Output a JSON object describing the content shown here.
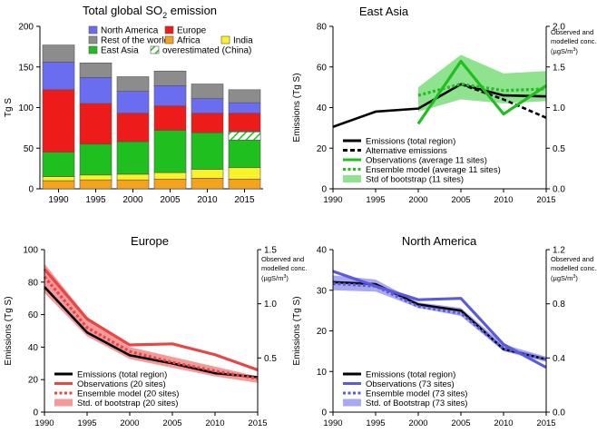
{
  "chart_data": [
    {
      "id": "global",
      "type": "bar",
      "stacked": true,
      "title": "Total global SO",
      "title_sub": "2",
      "title_suffix": " emission",
      "ylabel": "Tg S",
      "ylim": [
        0,
        200
      ],
      "yticks": [
        0,
        50,
        100,
        150,
        200
      ],
      "categories": [
        "1990",
        "1995",
        "2000",
        "2005",
        "2010",
        "2015"
      ],
      "series": [
        {
          "name": "Africa",
          "color": "#f5a31a",
          "values": [
            10,
            11,
            11,
            12,
            13,
            12
          ]
        },
        {
          "name": "India",
          "color": "#f8f32b",
          "values": [
            5,
            6,
            7,
            8,
            11,
            14
          ]
        },
        {
          "name": "East Asia",
          "color": "#1fbf1f",
          "values": [
            30,
            38,
            40,
            52,
            45,
            45
          ]
        },
        {
          "name": "Europe",
          "color": "#ee1b1b",
          "values": [
            77,
            50,
            35,
            30,
            24,
            22
          ]
        },
        {
          "name": "North America",
          "color": "#6a6df0",
          "values": [
            34,
            32,
            27,
            25,
            18,
            13
          ]
        },
        {
          "name": "Rest of the world",
          "color": "#8c8c8c",
          "values": [
            21,
            18,
            18,
            18,
            18,
            16
          ]
        }
      ],
      "hatched": {
        "name": "overestimated (China)",
        "color": "#1fbf1f",
        "category_index": 5,
        "base": 60,
        "value": 10
      },
      "legend": [
        "North America",
        "Europe",
        "Rest of the world",
        "Africa",
        "India",
        "East Asia",
        "overestimated (China)"
      ]
    },
    {
      "id": "eastasia",
      "type": "line",
      "title": "East Asia",
      "ylabel": "Emissions (Tg S)",
      "y2label": [
        "Observed and",
        "modelled conc.",
        "(µgS/m",
        "3",
        ")"
      ],
      "xlim": [
        1990,
        2015
      ],
      "xticks": [
        1990,
        1995,
        2000,
        2005,
        2010,
        2015
      ],
      "ylim": [
        0,
        80
      ],
      "yticks": [
        0,
        20,
        40,
        60,
        80
      ],
      "y2lim": [
        0,
        2.0
      ],
      "y2ticks": [
        0.0,
        0.5,
        1.0,
        1.5,
        2.0
      ],
      "lines": [
        {
          "name": "Emissions (total region)",
          "axis": "left",
          "style": "solid",
          "color": "#000000",
          "x": [
            1990,
            1995,
            2000,
            2005,
            2010,
            2015
          ],
          "y": [
            30.5,
            38,
            39.5,
            51.5,
            46,
            45.5
          ]
        },
        {
          "name": "Alternative emissions",
          "axis": "left",
          "style": "dashed",
          "color": "#000000",
          "x": [
            2005,
            2010,
            2015
          ],
          "y": [
            51.5,
            44,
            35
          ]
        },
        {
          "name": "Observations (average 11 sites)",
          "axis": "right",
          "style": "solid",
          "color": "#1fbf1f",
          "x": [
            2000,
            2005,
            2010,
            2015
          ],
          "y": [
            0.8,
            1.57,
            0.92,
            1.27
          ]
        },
        {
          "name": "Ensemble model (average 11 sites)",
          "axis": "right",
          "style": "dotted",
          "color": "#1fbf1f",
          "x": [
            2000,
            2005,
            2010,
            2015
          ],
          "y": [
            1.15,
            1.29,
            1.21,
            1.23
          ]
        }
      ],
      "band": {
        "name": "Std of bootstrap (11 sites)",
        "axis": "right",
        "color": "#8fe38f",
        "x": [
          2000,
          2005,
          2010,
          2015
        ],
        "low": [
          0.95,
          1.1,
          1.05,
          1.08
        ],
        "high": [
          1.25,
          1.65,
          1.42,
          1.45
        ]
      },
      "legend": [
        "Emissions (total region)",
        "Alternative emissions",
        "Observations (average 11 sites)",
        "Ensemble model (average 11 sites)",
        "Std of bootstrap (11 sites)"
      ]
    },
    {
      "id": "europe",
      "type": "line",
      "title": "Europe",
      "ylabel": "Emissions (Tg S)",
      "y2label": [
        "Observed and",
        "modelled conc.",
        "(µgS/m",
        "3",
        ")"
      ],
      "xlim": [
        1990,
        2015
      ],
      "xticks": [
        1990,
        1995,
        2000,
        2005,
        2010,
        2015
      ],
      "ylim": [
        0,
        100
      ],
      "yticks": [
        0,
        20,
        40,
        60,
        80,
        100
      ],
      "y2lim": [
        0,
        1.5
      ],
      "y2ticks": [
        0.5,
        1.0,
        1.5
      ],
      "lines": [
        {
          "name": "Emissions (total region)",
          "axis": "left",
          "style": "solid",
          "color": "#000000",
          "x": [
            1990,
            1995,
            2000,
            2005,
            2010,
            2015
          ],
          "y": [
            77,
            49,
            35,
            30,
            24,
            21.5
          ]
        },
        {
          "name": "Observations (20 sites)",
          "axis": "right",
          "style": "solid",
          "color": "#e84545",
          "x": [
            1990,
            1995,
            2000,
            2005,
            2010,
            2015
          ],
          "y": [
            1.32,
            0.86,
            0.62,
            0.63,
            0.53,
            0.39
          ]
        },
        {
          "name": "Ensemble model  (20 sites)",
          "axis": "right",
          "style": "dotted",
          "color": "#e84545",
          "x": [
            1990,
            1995,
            2000,
            2005,
            2010,
            2015
          ],
          "y": [
            1.25,
            0.78,
            0.56,
            0.46,
            0.38,
            0.31
          ]
        }
      ],
      "band": {
        "name": "Std. of bootstrap  (20 sites)",
        "axis": "right",
        "color": "#f39a9a",
        "x": [
          1990,
          1995,
          2000,
          2005,
          2010,
          2015
        ],
        "low": [
          1.1,
          0.7,
          0.49,
          0.41,
          0.33,
          0.27
        ],
        "high": [
          1.37,
          0.88,
          0.6,
          0.51,
          0.42,
          0.33
        ]
      },
      "legend": [
        "Emissions (total region)",
        "Observations (20 sites)",
        "Ensemble model  (20 sites)",
        "Std. of bootstrap  (20 sites)"
      ]
    },
    {
      "id": "northamerica",
      "type": "line",
      "title": "North America",
      "ylabel": "Emissions (Tg S)",
      "y2label": [
        "Observed and",
        "modelled conc.",
        "(µgS/m",
        "3",
        ")"
      ],
      "xlim": [
        1990,
        2015
      ],
      "xticks": [
        1990,
        1995,
        2000,
        2005,
        2010,
        2015
      ],
      "ylim": [
        0,
        40
      ],
      "yticks": [
        0,
        10,
        20,
        30,
        40
      ],
      "y2lim": [
        0,
        1.2
      ],
      "y2ticks": [
        0.0,
        0.4,
        0.8,
        1.2
      ],
      "lines": [
        {
          "name": "Emissions (total region)",
          "axis": "left",
          "style": "solid",
          "color": "#000000",
          "x": [
            1990,
            1995,
            2000,
            2005,
            2010,
            2015
          ],
          "y": [
            32,
            31.5,
            26.5,
            25,
            15.5,
            13
          ]
        },
        {
          "name": "Observations (73 sites)",
          "axis": "right",
          "style": "solid",
          "color": "#5a5ae0",
          "x": [
            1990,
            1995,
            2000,
            2005,
            2010,
            2015
          ],
          "y": [
            1.04,
            0.93,
            0.83,
            0.84,
            0.5,
            0.33
          ]
        },
        {
          "name": "Ensemble model (73 sites)",
          "axis": "right",
          "style": "dotted",
          "color": "#5a5ae0",
          "x": [
            1990,
            1995,
            2000,
            2005,
            2010,
            2015
          ],
          "y": [
            0.95,
            0.93,
            0.78,
            0.73,
            0.47,
            0.39
          ]
        }
      ],
      "band": {
        "name": "Std. of Bootstrap (73 sites)",
        "axis": "right",
        "color": "#a9a9f2",
        "x": [
          1990,
          1995,
          2000,
          2005,
          2010,
          2015
        ],
        "low": [
          0.9,
          0.89,
          0.77,
          0.71,
          0.45,
          0.37
        ],
        "high": [
          1.01,
          0.98,
          0.81,
          0.77,
          0.5,
          0.41
        ]
      },
      "legend": [
        "Emissions (total region)",
        "Observations (73 sites)",
        "Ensemble model (73 sites)",
        "Std. of Bootstrap (73 sites)"
      ]
    }
  ]
}
